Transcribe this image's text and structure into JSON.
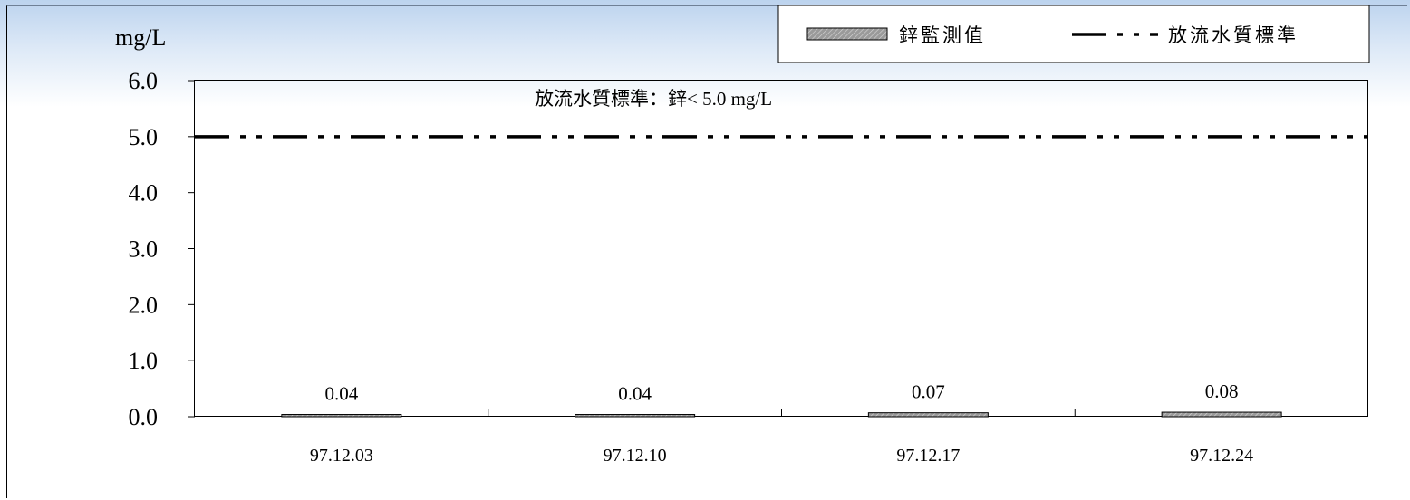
{
  "chart_data": {
    "type": "bar",
    "categories": [
      "97.12.03",
      "97.12.10",
      "97.12.17",
      "97.12.24"
    ],
    "series": [
      {
        "name": "鋅監測值",
        "values": [
          0.04,
          0.04,
          0.07,
          0.08
        ],
        "data_labels": [
          "0.04",
          "0.04",
          "0.07",
          "0.08"
        ],
        "fill": "#9a9a9a"
      }
    ],
    "reference_line": {
      "name": "放流水質標準",
      "value": 5.0,
      "style": "dash-dot-dot",
      "color": "#000000"
    },
    "annotation": "放流水質標準：鋅< 5.0 mg/L",
    "ylabel": "mg/L",
    "xlabel": "",
    "ylim": [
      0,
      6.0
    ],
    "yticks": [
      0.0,
      1.0,
      2.0,
      3.0,
      4.0,
      5.0,
      6.0
    ],
    "ytick_labels": [
      "0.0",
      "1.0",
      "2.0",
      "3.0",
      "4.0",
      "5.0",
      "6.0"
    ],
    "grid": false,
    "legend": {
      "placement": "top-right",
      "items": [
        {
          "label": "鋅監測值",
          "kind": "bar"
        },
        {
          "label": "放流水質標準",
          "kind": "line"
        }
      ]
    }
  },
  "colors": {
    "bar_fill": "#9a9a9a",
    "axis": "#000000",
    "background_top": "#bcd3ee"
  }
}
